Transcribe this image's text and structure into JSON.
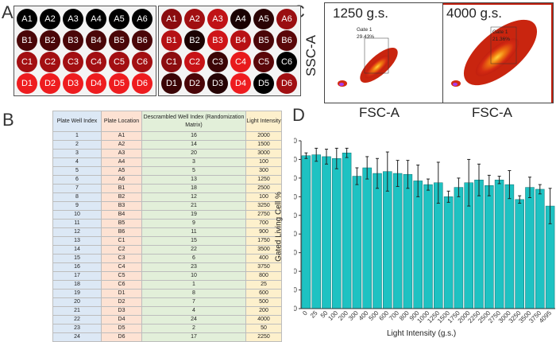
{
  "panels": {
    "a": "A",
    "b": "B",
    "c": "C",
    "d": "D"
  },
  "plate_a": {
    "wells": [
      {
        "id": "A1",
        "color": "#000000"
      },
      {
        "id": "A2",
        "color": "#000000"
      },
      {
        "id": "A3",
        "color": "#000000"
      },
      {
        "id": "A4",
        "color": "#000000"
      },
      {
        "id": "A5",
        "color": "#000000"
      },
      {
        "id": "A6",
        "color": "#000000"
      },
      {
        "id": "B1",
        "color": "#4a0608"
      },
      {
        "id": "B2",
        "color": "#4a0608"
      },
      {
        "id": "B3",
        "color": "#4a0608"
      },
      {
        "id": "B4",
        "color": "#4a0608"
      },
      {
        "id": "B5",
        "color": "#4a0608"
      },
      {
        "id": "B6",
        "color": "#4a0608"
      },
      {
        "id": "C1",
        "color": "#a30f12"
      },
      {
        "id": "C2",
        "color": "#a30f12"
      },
      {
        "id": "C3",
        "color": "#a30f12"
      },
      {
        "id": "C4",
        "color": "#a30f12"
      },
      {
        "id": "C5",
        "color": "#a30f12"
      },
      {
        "id": "C6",
        "color": "#a30f12"
      },
      {
        "id": "D1",
        "color": "#ee1c1f"
      },
      {
        "id": "D2",
        "color": "#ee1c1f"
      },
      {
        "id": "D3",
        "color": "#ee1c1f"
      },
      {
        "id": "D4",
        "color": "#ee1c1f"
      },
      {
        "id": "D5",
        "color": "#ee1c1f"
      },
      {
        "id": "D6",
        "color": "#ee1c1f"
      }
    ]
  },
  "plate_b": {
    "wells": [
      {
        "id": "A1",
        "color": "#8a0c0f"
      },
      {
        "id": "A2",
        "color": "#a10f12"
      },
      {
        "id": "A3",
        "color": "#c01216"
      },
      {
        "id": "A4",
        "color": "#1a0202"
      },
      {
        "id": "A5",
        "color": "#2b0405"
      },
      {
        "id": "A6",
        "color": "#9a0e11"
      },
      {
        "id": "B1",
        "color": "#b51114"
      },
      {
        "id": "B2",
        "color": "#1a0202"
      },
      {
        "id": "B3",
        "color": "#cf1418"
      },
      {
        "id": "B4",
        "color": "#b81114"
      },
      {
        "id": "B5",
        "color": "#4a0608"
      },
      {
        "id": "B6",
        "color": "#5a0709"
      },
      {
        "id": "C1",
        "color": "#8c0d10"
      },
      {
        "id": "C2",
        "color": "#c81317"
      },
      {
        "id": "C3",
        "color": "#3b0506"
      },
      {
        "id": "C4",
        "color": "#e81a1d"
      },
      {
        "id": "C5",
        "color": "#5a0709"
      },
      {
        "id": "C6",
        "color": "#000000"
      },
      {
        "id": "D1",
        "color": "#3b0506"
      },
      {
        "id": "D2",
        "color": "#4a0608"
      },
      {
        "id": "D3",
        "color": "#260304"
      },
      {
        "id": "D4",
        "color": "#ee1c1f"
      },
      {
        "id": "D5",
        "color": "#000000"
      },
      {
        "id": "D6",
        "color": "#a10f12"
      }
    ]
  },
  "table": {
    "headers": [
      "Plate Well Index",
      "Plate Location",
      "Descrambled Well Index (Randomization Matrix)",
      "Light Intensity"
    ],
    "rows": [
      [
        "1",
        "A1",
        "16",
        "2000"
      ],
      [
        "2",
        "A2",
        "14",
        "1500"
      ],
      [
        "3",
        "A3",
        "20",
        "3000"
      ],
      [
        "4",
        "A4",
        "3",
        "100"
      ],
      [
        "5",
        "A5",
        "5",
        "300"
      ],
      [
        "6",
        "A6",
        "13",
        "1250"
      ],
      [
        "7",
        "B1",
        "18",
        "2500"
      ],
      [
        "8",
        "B2",
        "12",
        "100"
      ],
      [
        "9",
        "B3",
        "21",
        "3250"
      ],
      [
        "10",
        "B4",
        "19",
        "2750"
      ],
      [
        "11",
        "B5",
        "9",
        "700"
      ],
      [
        "12",
        "B6",
        "11",
        "900"
      ],
      [
        "13",
        "C1",
        "15",
        "1750"
      ],
      [
        "14",
        "C2",
        "22",
        "3500"
      ],
      [
        "15",
        "C3",
        "6",
        "400"
      ],
      [
        "16",
        "C4",
        "23",
        "3750"
      ],
      [
        "17",
        "C5",
        "10",
        "800"
      ],
      [
        "18",
        "C6",
        "1",
        "25"
      ],
      [
        "19",
        "D1",
        "8",
        "600"
      ],
      [
        "20",
        "D2",
        "7",
        "500"
      ],
      [
        "21",
        "D3",
        "4",
        "200"
      ],
      [
        "22",
        "D4",
        "24",
        "4000"
      ],
      [
        "23",
        "D5",
        "2",
        "50"
      ],
      [
        "24",
        "D6",
        "17",
        "2250"
      ]
    ]
  },
  "flow": {
    "plot1": {
      "title": "1250 g.s.",
      "gate": "Gate 1",
      "percent": "29.43%"
    },
    "plot2": {
      "title": "4000 g.s.",
      "gate": "Gate 1",
      "percent": "21.36%"
    },
    "y_label": "SSC-A",
    "x_label": "FSC-A"
  },
  "colors": {
    "bar": "#1ec2c2",
    "bar_edge": "#0d6f6f"
  },
  "chart_data": {
    "type": "bar",
    "ylabel": "Gated Living Cell %",
    "xlabel": "Light Intensity (g.s.)",
    "ylim": [
      0,
      90
    ],
    "yticks": [
      "0",
      "10",
      "20",
      "30",
      "40",
      "50",
      "60",
      "70",
      "80",
      "90"
    ],
    "categories": [
      "0",
      "25",
      "50",
      "100",
      "200",
      "300",
      "400",
      "500",
      "600",
      "700",
      "800",
      "900",
      "1000",
      "1250",
      "1500",
      "1750",
      "2000",
      "2250",
      "2500",
      "2750",
      "3000",
      "3250",
      "3500",
      "3750",
      "4095"
    ],
    "values": [
      82,
      82.5,
      81.5,
      80.5,
      83.5,
      71,
      75.5,
      72.5,
      73.5,
      72.5,
      72,
      68.5,
      66.5,
      67.5,
      60,
      65,
      67.5,
      69,
      66,
      69,
      66.5,
      58.5,
      65,
      64,
      55
    ],
    "errors": [
      1.5,
      3.5,
      4,
      5.5,
      2.5,
      4.5,
      6,
      8,
      10.5,
      7,
      7.5,
      8.5,
      3,
      11,
      3,
      5,
      12.5,
      8.5,
      5.5,
      2,
      7.5,
      2,
      5.5,
      2.5,
      9.5
    ]
  }
}
